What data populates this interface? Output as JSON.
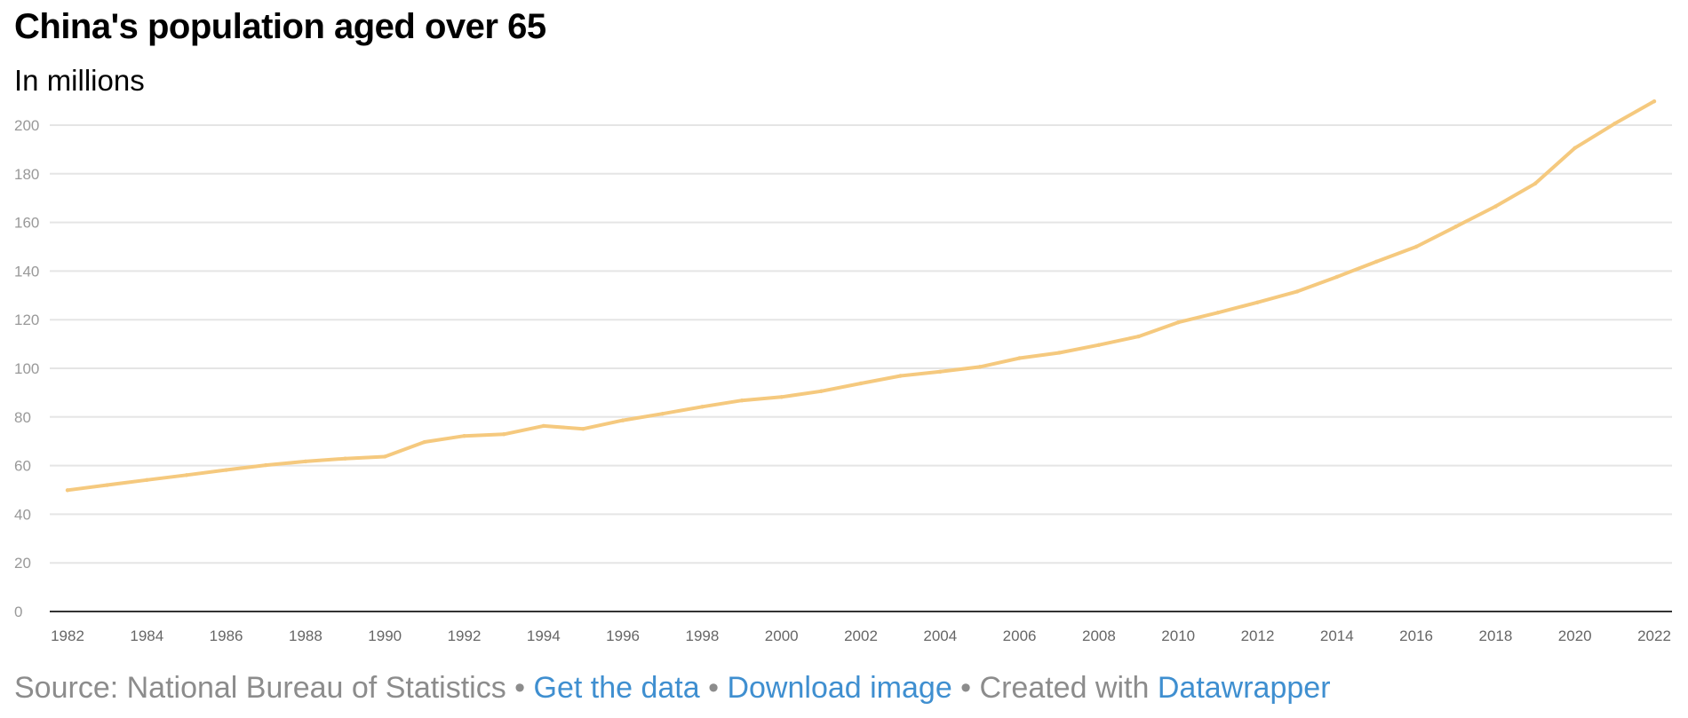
{
  "header": {
    "title": "China's population aged over 65",
    "subtitle": "In millions"
  },
  "footer": {
    "source_text": "Source: National Bureau of Statistics",
    "separator": " • ",
    "get_data_label": "Get the data",
    "download_label": "Download image",
    "created_with_text": "Created with ",
    "datawrapper_label": "Datawrapper"
  },
  "colors": {
    "line": "#f5c97e",
    "grid": "#e5e5e5",
    "baseline": "#333333",
    "tick_text": "#999999",
    "link": "#3f8fd0"
  },
  "chart_data": {
    "type": "line",
    "title": "China's population aged over 65",
    "subtitle": "In millions",
    "xlabel": "",
    "ylabel": "",
    "ylim": [
      0,
      210
    ],
    "y_ticks": [
      0,
      20,
      40,
      60,
      80,
      100,
      120,
      140,
      160,
      180,
      200
    ],
    "x_ticks": [
      1982,
      1984,
      1986,
      1988,
      1990,
      1992,
      1994,
      1996,
      1998,
      2000,
      2002,
      2004,
      2006,
      2008,
      2010,
      2012,
      2014,
      2016,
      2018,
      2020,
      2022
    ],
    "grid": true,
    "legend": "none",
    "series": [
      {
        "x": [
          1982,
          1983,
          1984,
          1985,
          1986,
          1987,
          1988,
          1989,
          1990,
          1991,
          1992,
          1993,
          1994,
          1995,
          1996,
          1997,
          1998,
          1999,
          2000,
          2001,
          2002,
          2003,
          2004,
          2005,
          2006,
          2007,
          2008,
          2009,
          2010,
          2011,
          2012,
          2013,
          2014,
          2015,
          2016,
          2017,
          2018,
          2019,
          2020,
          2021,
          2022
        ],
        "values": [
          49.9,
          52.0,
          54.1,
          56.1,
          58.2,
          60.2,
          61.7,
          62.9,
          63.7,
          69.7,
          72.2,
          72.9,
          76.3,
          75.1,
          78.6,
          81.3,
          84.2,
          86.8,
          88.2,
          90.6,
          93.8,
          96.9,
          98.6,
          100.6,
          104.2,
          106.4,
          109.6,
          113.1,
          118.9,
          122.9,
          127.1,
          131.6,
          137.6,
          143.9,
          150.0,
          158.3,
          166.6,
          176.0,
          190.6,
          200.6,
          209.8
        ]
      }
    ]
  }
}
